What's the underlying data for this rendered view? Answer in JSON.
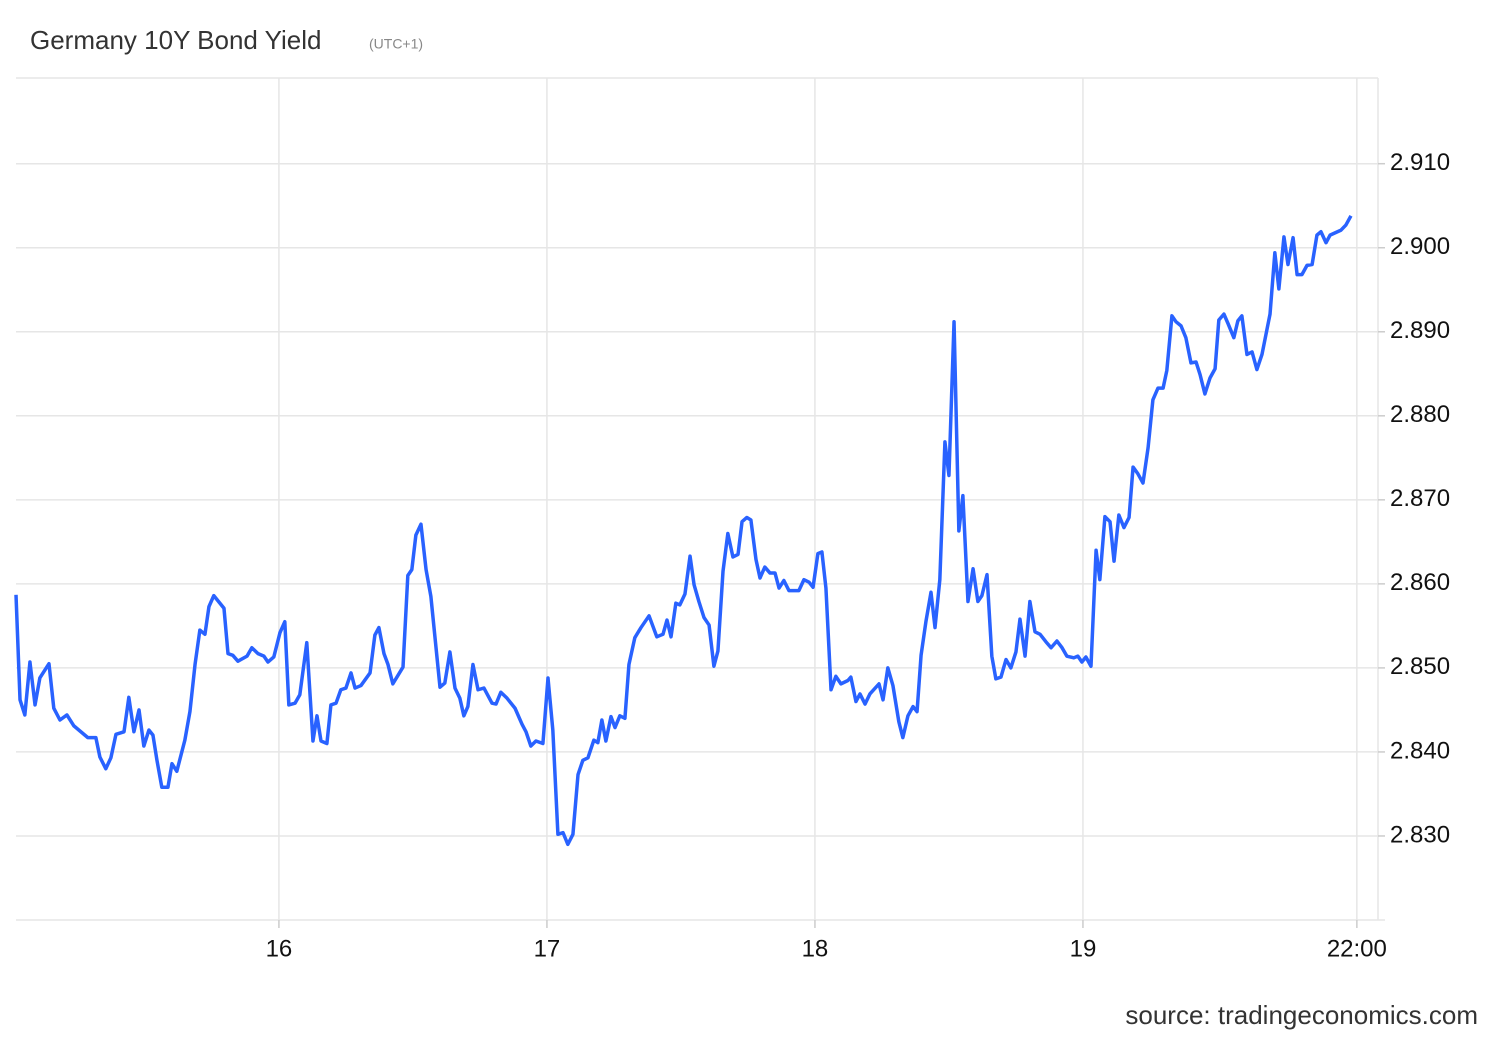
{
  "chart_data": {
    "type": "line",
    "title": "Germany 10Y Bond Yield",
    "subtitle": "(UTC+1)",
    "source": "source: tradingeconomics.com",
    "grid": true,
    "xlim": [
      15.019,
      20.127
    ],
    "xticks": [
      16,
      17,
      18,
      19,
      {
        "value": 20.022,
        "label": "22:00"
      }
    ],
    "ylim": [
      2.82,
      2.9202
    ],
    "yticks": [
      {
        "value": 2.83,
        "label": "2.830"
      },
      {
        "value": 2.84,
        "label": "2.840"
      },
      {
        "value": 2.85,
        "label": "2.850"
      },
      {
        "value": 2.86,
        "label": "2.860"
      },
      {
        "value": 2.87,
        "label": "2.870"
      },
      {
        "value": 2.88,
        "label": "2.880"
      },
      {
        "value": 2.89,
        "label": "2.890"
      },
      {
        "value": 2.9,
        "label": "2.900"
      },
      {
        "value": 2.91,
        "label": "2.910"
      }
    ],
    "x": [
      15.019,
      15.034,
      15.052,
      15.071,
      15.09,
      15.108,
      15.142,
      15.16,
      15.183,
      15.209,
      15.235,
      15.287,
      15.317,
      15.332,
      15.354,
      15.373,
      15.392,
      15.422,
      15.44,
      15.459,
      15.478,
      15.496,
      15.515,
      15.53,
      15.545,
      15.563,
      15.586,
      15.601,
      15.619,
      15.649,
      15.668,
      15.687,
      15.705,
      15.724,
      15.739,
      15.757,
      15.795,
      15.81,
      15.828,
      15.847,
      15.881,
      15.899,
      15.922,
      15.944,
      15.959,
      15.981,
      16.004,
      16.022,
      16.037,
      16.06,
      16.078,
      16.104,
      16.127,
      16.142,
      16.157,
      16.179,
      16.194,
      16.213,
      16.231,
      16.25,
      16.269,
      16.284,
      16.306,
      16.34,
      16.358,
      16.373,
      16.392,
      16.407,
      16.425,
      16.463,
      16.481,
      16.496,
      16.511,
      16.53,
      16.549,
      16.567,
      16.601,
      16.619,
      16.638,
      16.657,
      16.675,
      16.69,
      16.705,
      16.724,
      16.743,
      16.765,
      16.795,
      16.81,
      16.828,
      16.851,
      16.881,
      16.907,
      16.922,
      16.94,
      16.959,
      16.985,
      17.004,
      17.022,
      17.041,
      17.06,
      17.078,
      17.097,
      17.116,
      17.134,
      17.153,
      17.175,
      17.19,
      17.205,
      17.22,
      17.239,
      17.254,
      17.272,
      17.291,
      17.306,
      17.328,
      17.351,
      17.381,
      17.41,
      17.433,
      17.448,
      17.463,
      17.481,
      17.496,
      17.515,
      17.534,
      17.549,
      17.567,
      17.586,
      17.605,
      17.623,
      17.638,
      17.657,
      17.675,
      17.694,
      17.713,
      17.728,
      17.746,
      17.761,
      17.78,
      17.795,
      17.813,
      17.832,
      17.851,
      17.866,
      17.884,
      17.903,
      17.94,
      17.959,
      17.978,
      17.993,
      18.011,
      18.026,
      18.041,
      18.06,
      18.078,
      18.097,
      18.123,
      18.134,
      18.153,
      18.168,
      18.187,
      18.205,
      18.239,
      18.254,
      18.272,
      18.291,
      18.313,
      18.328,
      18.347,
      18.366,
      18.381,
      18.396,
      18.414,
      18.433,
      18.448,
      18.466,
      18.485,
      18.5,
      18.519,
      18.537,
      18.552,
      18.571,
      18.59,
      18.608,
      18.623,
      18.642,
      18.66,
      18.675,
      18.694,
      18.713,
      18.731,
      18.75,
      18.765,
      18.784,
      18.802,
      18.821,
      18.84,
      18.862,
      18.881,
      18.903,
      18.922,
      18.94,
      18.966,
      18.981,
      18.996,
      19.011,
      19.03,
      19.049,
      19.063,
      19.082,
      19.101,
      19.116,
      19.134,
      19.153,
      19.172,
      19.187,
      19.205,
      19.224,
      19.243,
      19.261,
      19.28,
      19.299,
      19.313,
      19.332,
      19.347,
      19.366,
      19.384,
      19.403,
      19.422,
      19.437,
      19.455,
      19.474,
      19.493,
      19.507,
      19.526,
      19.541,
      19.563,
      19.578,
      19.593,
      19.612,
      19.631,
      19.649,
      19.668,
      19.698,
      19.716,
      19.731,
      19.75,
      19.765,
      19.784,
      19.799,
      19.817,
      19.836,
      19.855,
      19.873,
      19.888,
      19.907,
      19.922,
      19.963,
      19.981,
      20.0
    ],
    "series": [
      {
        "name": "Germany 10Y Bond Yield",
        "color": "#2962ff",
        "values": [
          2.8587,
          2.8462,
          2.8444,
          2.8507,
          2.8456,
          2.8488,
          2.8505,
          2.8452,
          2.8438,
          2.8444,
          2.8431,
          2.8417,
          2.8417,
          2.8394,
          2.838,
          2.8393,
          2.8421,
          2.8424,
          2.8465,
          2.8424,
          2.845,
          2.8407,
          2.8426,
          2.842,
          2.839,
          2.8358,
          2.8358,
          2.8386,
          2.8377,
          2.8414,
          2.8448,
          2.8504,
          2.8545,
          2.854,
          2.8573,
          2.8586,
          2.8571,
          2.8517,
          2.8515,
          2.8508,
          2.8514,
          2.8524,
          2.8517,
          2.8514,
          2.8507,
          2.8513,
          2.8542,
          2.8555,
          2.8456,
          2.8458,
          2.8468,
          2.853,
          2.8413,
          2.8443,
          2.8413,
          2.841,
          2.8456,
          2.8458,
          2.8474,
          2.8476,
          2.8494,
          2.8476,
          2.8479,
          2.8494,
          2.8539,
          2.8548,
          2.8517,
          2.8504,
          2.8481,
          2.8501,
          2.861,
          2.8617,
          2.8658,
          2.8671,
          2.8617,
          2.8585,
          2.8477,
          2.8482,
          2.8519,
          2.8476,
          2.8464,
          2.8443,
          2.8454,
          2.8504,
          2.8474,
          2.8476,
          2.8458,
          2.8457,
          2.8471,
          2.8464,
          2.8452,
          2.8433,
          2.8424,
          2.8407,
          2.8413,
          2.841,
          2.8488,
          2.8426,
          2.8302,
          2.8304,
          2.829,
          2.8302,
          2.8373,
          2.839,
          2.8393,
          2.8414,
          2.8411,
          2.8438,
          2.8413,
          2.8442,
          2.8429,
          2.8443,
          2.844,
          2.8504,
          2.8536,
          2.8548,
          2.8562,
          2.8537,
          2.854,
          2.8557,
          2.8537,
          2.8577,
          2.8575,
          2.8588,
          2.8633,
          2.8599,
          2.8579,
          2.856,
          2.8551,
          2.8502,
          2.852,
          2.8615,
          2.866,
          2.8632,
          2.8635,
          2.8674,
          2.8679,
          2.8676,
          2.8629,
          2.8607,
          2.862,
          2.8613,
          2.8613,
          2.8595,
          2.8604,
          2.8592,
          2.8592,
          2.8605,
          2.8602,
          2.8596,
          2.8636,
          2.8638,
          2.8595,
          2.8474,
          2.849,
          2.8481,
          2.8485,
          2.8489,
          2.846,
          2.8469,
          2.8457,
          2.8469,
          2.8481,
          2.8462,
          2.85,
          2.8479,
          2.8436,
          2.8417,
          2.8443,
          2.8454,
          2.8448,
          2.8515,
          2.8555,
          2.859,
          2.8548,
          2.8605,
          2.8769,
          2.8729,
          2.8912,
          2.8663,
          2.8705,
          2.8579,
          2.8618,
          2.8579,
          2.8586,
          2.8611,
          2.8514,
          2.8487,
          2.8489,
          2.851,
          2.85,
          2.8519,
          2.8558,
          2.8514,
          2.8579,
          2.8543,
          2.854,
          2.8531,
          2.8524,
          2.8532,
          2.8524,
          2.8514,
          2.8512,
          2.8514,
          2.8507,
          2.8513,
          2.8502,
          2.864,
          2.8605,
          2.868,
          2.8674,
          2.8627,
          2.8682,
          2.8667,
          2.8679,
          2.8739,
          2.8731,
          2.872,
          2.8762,
          2.8819,
          2.8833,
          2.8833,
          2.8854,
          2.8919,
          2.8912,
          2.8907,
          2.8893,
          2.8863,
          2.8864,
          2.8849,
          2.8826,
          2.8845,
          2.8856,
          2.8914,
          2.8921,
          2.891,
          2.8893,
          2.8913,
          2.8919,
          2.8873,
          2.8876,
          2.8855,
          2.8873,
          2.8921,
          2.8994,
          2.8951,
          2.9013,
          2.898,
          2.9012,
          2.8968,
          2.8968,
          2.8979,
          2.898,
          2.9015,
          2.9019,
          2.9006,
          2.9015,
          2.9021,
          2.9027,
          2.9038
        ]
      }
    ]
  }
}
